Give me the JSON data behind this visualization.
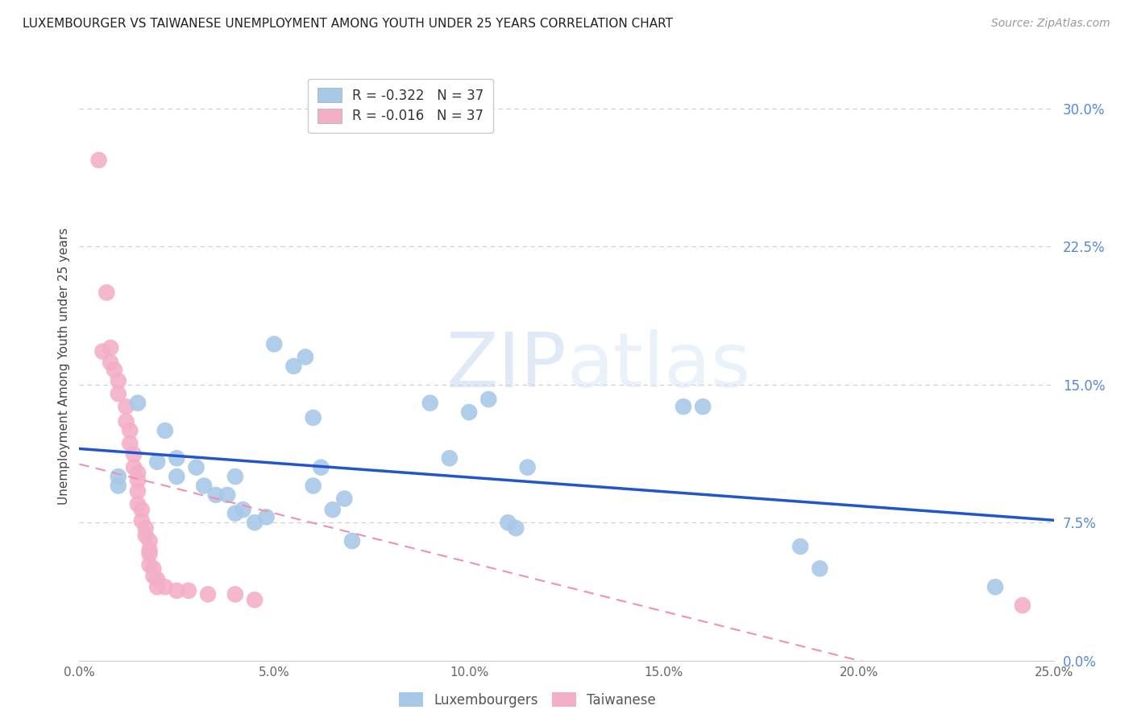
{
  "title": "LUXEMBOURGER VS TAIWANESE UNEMPLOYMENT AMONG YOUTH UNDER 25 YEARS CORRELATION CHART",
  "source": "Source: ZipAtlas.com",
  "ylabel": "Unemployment Among Youth under 25 years",
  "xlabel_ticks": [
    "0.0%",
    "5.0%",
    "10.0%",
    "15.0%",
    "20.0%",
    "25.0%"
  ],
  "xlabel_vals": [
    0.0,
    0.05,
    0.1,
    0.15,
    0.2,
    0.25
  ],
  "ylabel_ticks": [
    "0.0%",
    "7.5%",
    "15.0%",
    "22.5%",
    "30.0%"
  ],
  "ylabel_vals": [
    0.0,
    0.075,
    0.15,
    0.225,
    0.3
  ],
  "xlim": [
    0.0,
    0.25
  ],
  "ylim": [
    0.0,
    0.32
  ],
  "legend_r_lux": "R = -0.322",
  "legend_n_lux": "N = 37",
  "legend_r_tai": "R = -0.016",
  "legend_n_tai": "N = 37",
  "lux_color": "#a8c8e8",
  "tai_color": "#f4afc8",
  "lux_line_color": "#2255cc",
  "tai_line_color": "#f090b0",
  "watermark_zip": "ZIP",
  "watermark_atlas": "atlas",
  "lux_x": [
    0.01,
    0.01,
    0.015,
    0.02,
    0.022,
    0.025,
    0.025,
    0.03,
    0.032,
    0.035,
    0.038,
    0.04,
    0.04,
    0.042,
    0.045,
    0.048,
    0.05,
    0.055,
    0.058,
    0.06,
    0.06,
    0.062,
    0.065,
    0.068,
    0.07,
    0.09,
    0.095,
    0.1,
    0.105,
    0.11,
    0.112,
    0.115,
    0.155,
    0.16,
    0.185,
    0.19,
    0.235
  ],
  "lux_y": [
    0.095,
    0.1,
    0.14,
    0.108,
    0.125,
    0.1,
    0.11,
    0.105,
    0.095,
    0.09,
    0.09,
    0.1,
    0.08,
    0.082,
    0.075,
    0.078,
    0.172,
    0.16,
    0.165,
    0.132,
    0.095,
    0.105,
    0.082,
    0.088,
    0.065,
    0.14,
    0.11,
    0.135,
    0.142,
    0.075,
    0.072,
    0.105,
    0.138,
    0.138,
    0.062,
    0.05,
    0.04
  ],
  "tai_x": [
    0.005,
    0.007,
    0.008,
    0.008,
    0.009,
    0.01,
    0.01,
    0.012,
    0.012,
    0.013,
    0.013,
    0.014,
    0.014,
    0.015,
    0.015,
    0.015,
    0.015,
    0.016,
    0.016,
    0.017,
    0.017,
    0.018,
    0.018,
    0.018,
    0.018,
    0.019,
    0.019,
    0.02,
    0.02,
    0.022,
    0.025,
    0.028,
    0.033,
    0.04,
    0.045,
    0.242,
    0.006
  ],
  "tai_y": [
    0.272,
    0.2,
    0.17,
    0.162,
    0.158,
    0.152,
    0.145,
    0.138,
    0.13,
    0.125,
    0.118,
    0.112,
    0.105,
    0.102,
    0.098,
    0.092,
    0.085,
    0.082,
    0.076,
    0.072,
    0.068,
    0.065,
    0.06,
    0.058,
    0.052,
    0.05,
    0.046,
    0.044,
    0.04,
    0.04,
    0.038,
    0.038,
    0.036,
    0.036,
    0.033,
    0.03,
    0.168
  ]
}
